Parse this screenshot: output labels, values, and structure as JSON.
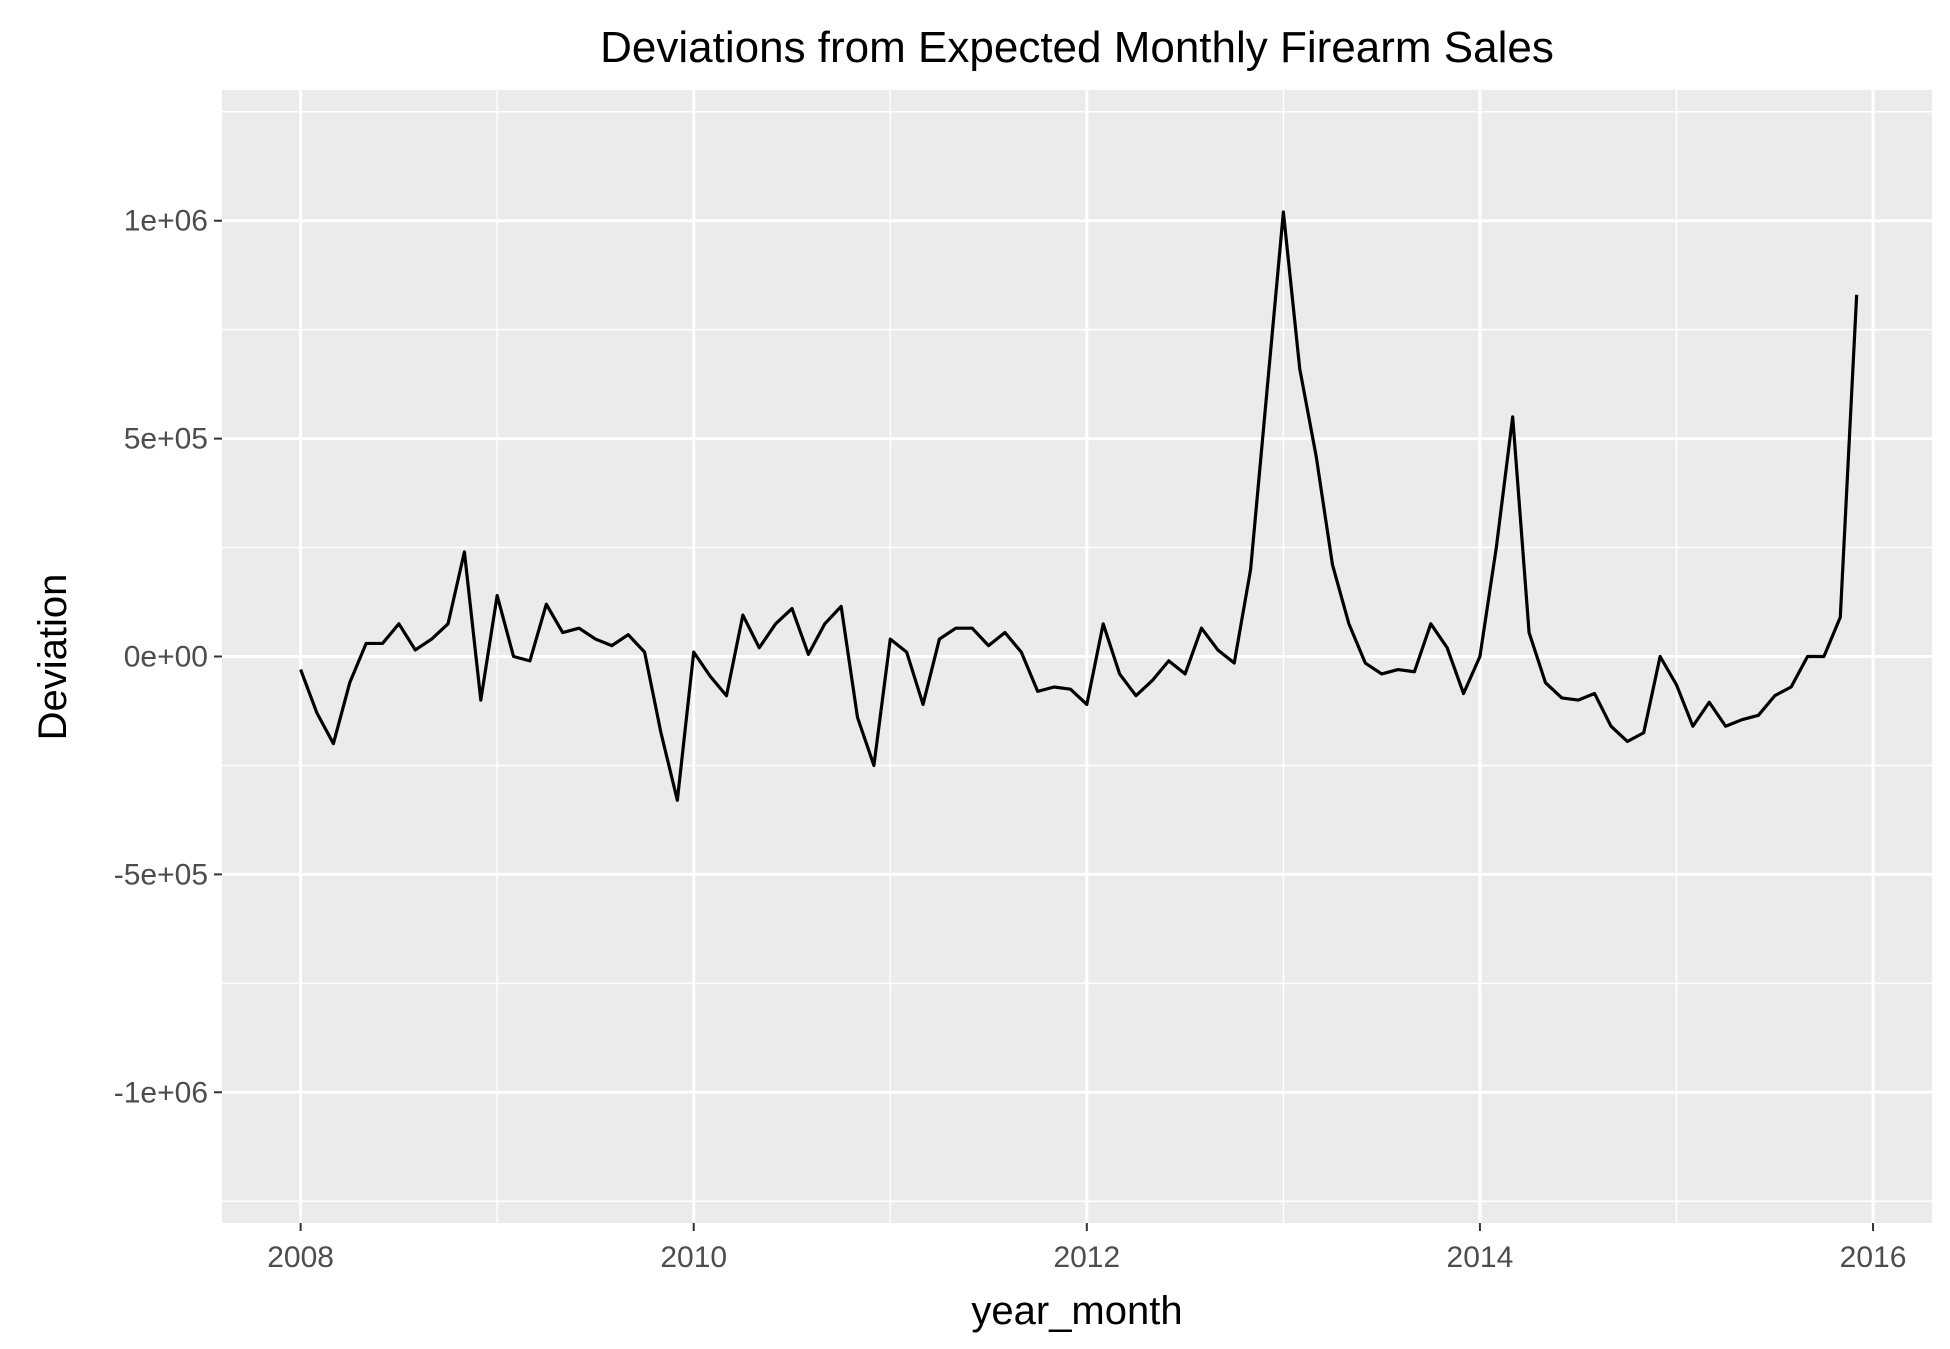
{
  "chart_data": {
    "type": "line",
    "title": "Deviations from Expected Monthly Firearm Sales",
    "xlabel": "year_month",
    "ylabel": "Deviation",
    "x_ticks": [
      "2008",
      "2010",
      "2012",
      "2014",
      "2016"
    ],
    "y_ticks": [
      "-1e+06",
      "-5e+05",
      "0e+00",
      "5e+05",
      "1e+06"
    ],
    "xlim": [
      2007.6,
      2016.3
    ],
    "ylim": [
      -1300000,
      1300000
    ],
    "grid": true,
    "legend": "none",
    "colors": {
      "panel": "#ebebeb",
      "grid": "#ffffff",
      "line": "#000000"
    },
    "x_start_year": 2008,
    "series": [
      {
        "values": [
          -30000,
          -130000,
          -200000,
          -60000,
          30000,
          30000,
          75000,
          15000,
          40000,
          75000,
          240000,
          -100000,
          140000,
          0,
          -10000,
          120000,
          55000,
          65000,
          40000,
          25000,
          50000,
          10000,
          -175000,
          -330000,
          10000,
          -45000,
          -90000,
          95000,
          20000,
          75000,
          110000,
          5000,
          75000,
          115000,
          -140000,
          -250000,
          40000,
          10000,
          -110000,
          40000,
          65000,
          65000,
          25000,
          55000,
          10000,
          -80000,
          -70000,
          -75000,
          -110000,
          75000,
          -40000,
          -90000,
          -55000,
          -10000,
          -40000,
          65000,
          15000,
          -15000,
          200000,
          610000,
          1020000,
          660000,
          460000,
          210000,
          75000,
          -15000,
          -40000,
          -30000,
          -35000,
          75000,
          20000,
          -85000,
          0,
          250000,
          550000,
          55000,
          -60000,
          -95000,
          -100000,
          -85000,
          -160000,
          -195000,
          -175000,
          0,
          -65000,
          -160000,
          -105000,
          -160000,
          -145000,
          -135000,
          -90000,
          -70000,
          0,
          0,
          90000,
          830000
        ]
      }
    ]
  }
}
